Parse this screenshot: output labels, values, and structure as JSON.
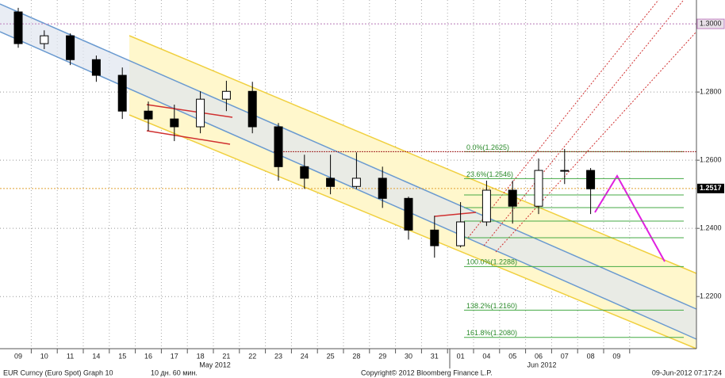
{
  "chart_data": {
    "type": "candlestick",
    "categories": [
      "09",
      "10",
      "11",
      "14",
      "15",
      "16",
      "17",
      "18",
      "21",
      "22",
      "23",
      "24",
      "25",
      "28",
      "29",
      "30",
      "31",
      "01",
      "04",
      "05",
      "06",
      "07",
      "08",
      "09"
    ],
    "open": [
      1.3035,
      1.2942,
      1.2965,
      1.2895,
      1.2849,
      1.2744,
      1.2721,
      1.2698,
      1.2779,
      1.2802,
      1.2698,
      1.2581,
      1.2547,
      1.2523,
      1.2547,
      1.2488,
      1.2395,
      1.2349,
      1.2419,
      1.2512,
      1.2465,
      1.257,
      1.257,
      null
    ],
    "high": [
      1.3047,
      1.2981,
      1.2972,
      1.2907,
      1.2872,
      1.2772,
      1.2763,
      1.2802,
      1.2833,
      1.283,
      1.2709,
      1.2616,
      1.2616,
      1.2623,
      1.2581,
      1.2493,
      1.2437,
      1.2477,
      1.254,
      1.254,
      1.2605,
      1.2633,
      1.2577,
      null
    ],
    "low": [
      1.293,
      1.2926,
      1.2879,
      1.283,
      1.2721,
      1.2686,
      1.2656,
      1.2679,
      1.2744,
      1.2679,
      1.254,
      1.2516,
      1.25,
      1.2516,
      1.246,
      1.2367,
      1.2314,
      1.2344,
      1.2407,
      1.2414,
      1.2442,
      1.253,
      1.2442,
      null
    ],
    "close": [
      1.2942,
      1.2965,
      1.2895,
      1.2849,
      1.2744,
      1.2721,
      1.2698,
      1.2779,
      1.2802,
      1.2698,
      1.2581,
      1.2547,
      1.2523,
      1.2547,
      1.2488,
      1.2395,
      1.2349,
      1.2419,
      1.2512,
      1.2465,
      1.257,
      1.257,
      1.2516,
      null
    ],
    "month_labels": [
      "May 2012",
      "Jun 2012"
    ],
    "ylim": [
      1.2047,
      1.307
    ],
    "yticks": [
      {
        "value": 1.22,
        "label": "1.2200"
      },
      {
        "value": 1.24,
        "label": "1.2400"
      },
      {
        "value": 1.26,
        "label": "1.2600"
      },
      {
        "value": 1.28,
        "label": "1.2800"
      },
      {
        "value": 1.3,
        "label": "1.3000"
      }
    ],
    "reference_line": {
      "value": 1.3,
      "color": "#c080c0"
    },
    "last_price": {
      "value": 1.2517,
      "label": "1.2517",
      "color": "#e0a030"
    },
    "fib_levels": [
      {
        "value": 1.2625,
        "label": "0.0%(1.2625)"
      },
      {
        "value": 1.2546,
        "label": "23.6%(1.2546)"
      },
      {
        "value": 1.2288,
        "label": "100.0%(1.2288)"
      },
      {
        "value": 1.216,
        "label": "138.2%(1.2160)"
      },
      {
        "value": 1.208,
        "label": "161.8%(1.2080)"
      }
    ],
    "fib_color": "#44aa44",
    "grid": true
  },
  "footer": {
    "security": "EUR Curncy (Euro Spot) Graph 10",
    "period": "10 дн. 60 мин.",
    "copyright": "Copyright© 2012 Bloomberg Finance L.P.",
    "timestamp": "09-Jun-2012 07:17:24"
  }
}
